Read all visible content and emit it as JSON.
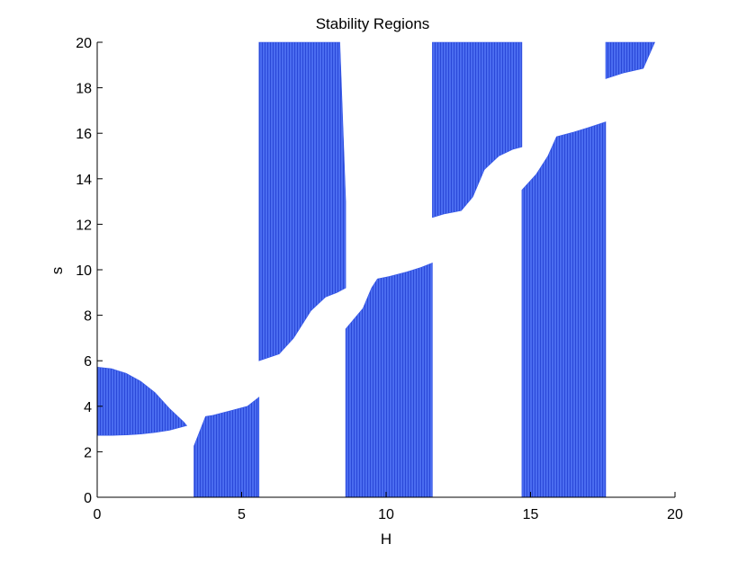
{
  "chart_data": {
    "type": "area",
    "title": "Stability Regions",
    "xlabel": "H",
    "ylabel": "s",
    "xlim": [
      0,
      20
    ],
    "ylim": [
      0,
      20
    ],
    "xticks": [
      "0",
      "5",
      "10",
      "15",
      "20"
    ],
    "yticks": [
      "0",
      "2",
      "4",
      "6",
      "8",
      "10",
      "12",
      "14",
      "16",
      "18",
      "20"
    ],
    "grid": false,
    "legend": false,
    "fill_color": "#3355e6",
    "regions": [
      {
        "points": [
          [
            0,
            5.72
          ],
          [
            0.5,
            5.65
          ],
          [
            1,
            5.45
          ],
          [
            1.5,
            5.1
          ],
          [
            2,
            4.6
          ],
          [
            2.5,
            3.9
          ],
          [
            3.0,
            3.3
          ],
          [
            3.1,
            3.15
          ],
          [
            2.5,
            2.95
          ],
          [
            2,
            2.85
          ],
          [
            1.5,
            2.78
          ],
          [
            1,
            2.74
          ],
          [
            0.5,
            2.72
          ],
          [
            0,
            2.72
          ]
        ]
      },
      {
        "points": [
          [
            3.35,
            0
          ],
          [
            5.6,
            0
          ],
          [
            5.6,
            4.4
          ],
          [
            5.2,
            4.0
          ],
          [
            4.6,
            3.8
          ],
          [
            4.0,
            3.6
          ],
          [
            3.75,
            3.55
          ],
          [
            3.35,
            2.25
          ]
        ]
      },
      {
        "points": [
          [
            5.6,
            20
          ],
          [
            8.4,
            20
          ],
          [
            8.6,
            13
          ],
          [
            8.6,
            9.2
          ],
          [
            8.3,
            9.0
          ],
          [
            7.9,
            8.8
          ],
          [
            7.4,
            8.2
          ],
          [
            6.8,
            7.0
          ],
          [
            6.3,
            6.3
          ],
          [
            5.6,
            6.0
          ]
        ]
      },
      {
        "points": [
          [
            8.6,
            0
          ],
          [
            11.6,
            0
          ],
          [
            11.6,
            10.3
          ],
          [
            11.2,
            10.1
          ],
          [
            10.7,
            9.9
          ],
          [
            10.1,
            9.7
          ],
          [
            9.7,
            9.6
          ],
          [
            9.5,
            9.2
          ],
          [
            9.2,
            8.3
          ],
          [
            8.6,
            7.4
          ]
        ]
      },
      {
        "points": [
          [
            11.6,
            20
          ],
          [
            14.7,
            20
          ],
          [
            14.7,
            15.4
          ],
          [
            14.4,
            15.3
          ],
          [
            13.9,
            15.0
          ],
          [
            13.4,
            14.4
          ],
          [
            13.0,
            13.2
          ],
          [
            12.6,
            12.6
          ],
          [
            12.0,
            12.45
          ],
          [
            11.6,
            12.3
          ]
        ]
      },
      {
        "points": [
          [
            14.7,
            0
          ],
          [
            17.6,
            0
          ],
          [
            17.6,
            16.5
          ],
          [
            17.0,
            16.25
          ],
          [
            16.5,
            16.05
          ],
          [
            15.9,
            15.85
          ],
          [
            15.6,
            15.0
          ],
          [
            15.2,
            14.2
          ],
          [
            14.7,
            13.5
          ]
        ]
      },
      {
        "points": [
          [
            17.6,
            20
          ],
          [
            19.3,
            20
          ],
          [
            18.9,
            18.85
          ],
          [
            18.2,
            18.65
          ],
          [
            17.6,
            18.4
          ]
        ]
      }
    ]
  }
}
